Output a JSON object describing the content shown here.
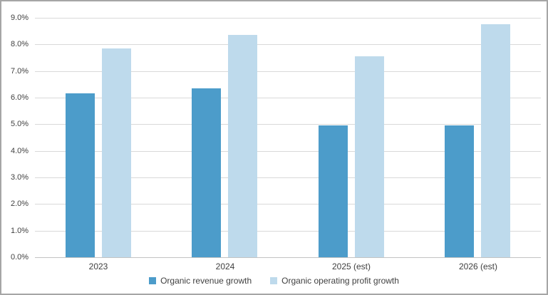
{
  "chart_data": {
    "type": "bar",
    "title": "",
    "xlabel": "",
    "ylabel": "",
    "categories": [
      "2023",
      "2024",
      "2025 (est)",
      "2026 (est)"
    ],
    "series": [
      {
        "name": "Organic revenue growth",
        "color": "#4c9cca",
        "values": [
          6.15,
          6.35,
          4.95,
          4.95
        ]
      },
      {
        "name": "Organic operating profit growth",
        "color": "#bedaec",
        "values": [
          7.85,
          8.35,
          7.55,
          8.75
        ]
      }
    ],
    "ylim": [
      0,
      9
    ],
    "ytick_step": 1,
    "ytick_labels": [
      "0.0%",
      "1.0%",
      "2.0%",
      "3.0%",
      "4.0%",
      "5.0%",
      "6.0%",
      "7.0%",
      "8.0%",
      "9.0%"
    ],
    "grid": true,
    "legend_position": "bottom"
  }
}
